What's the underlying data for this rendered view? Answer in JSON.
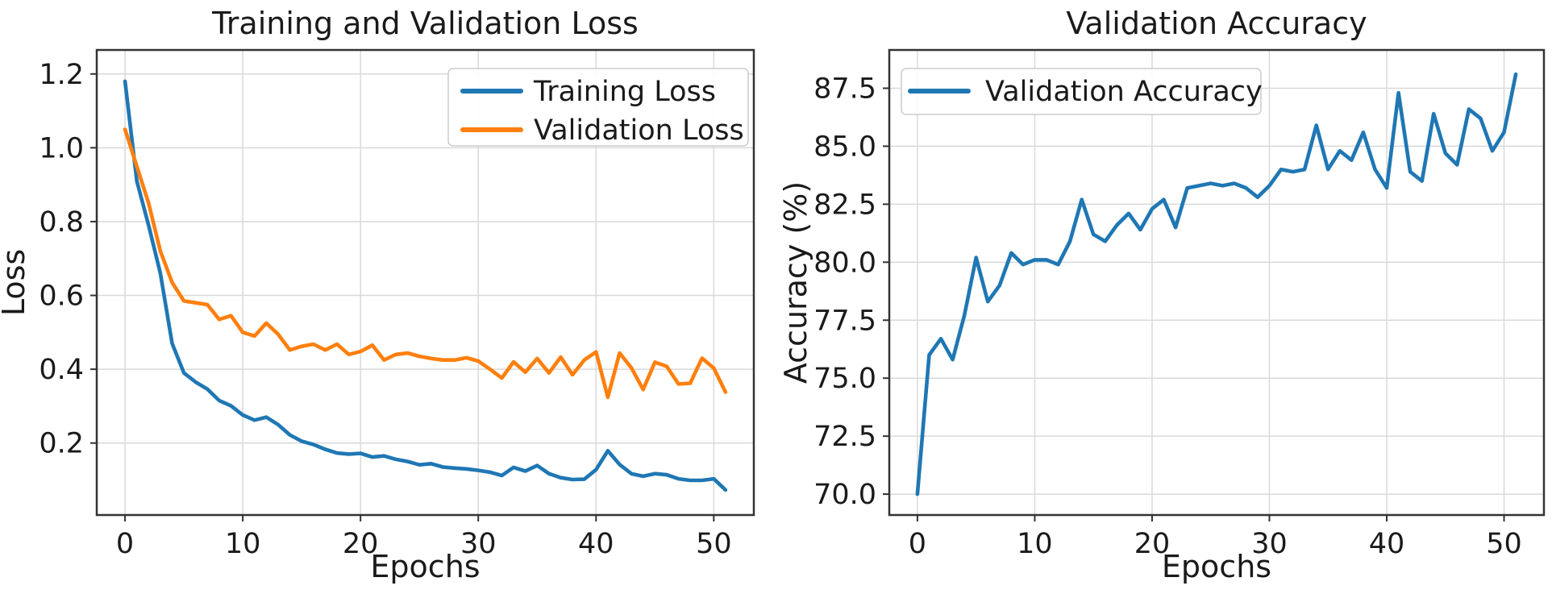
{
  "figure": {
    "background": "#ffffff",
    "text_color": "#1a1a1a",
    "grid_color": "#d9d9d9",
    "spine_color": "#333333",
    "legend_border_color": "#cccccc",
    "legend_background": "#ffffff"
  },
  "chart_data": [
    {
      "name": "loss-chart",
      "type": "line",
      "title": "Training and Validation Loss",
      "xlabel": "Epochs",
      "ylabel": "Loss",
      "xlim": [
        -2.4,
        53.4
      ],
      "ylim": [
        0.005,
        1.265
      ],
      "grid": true,
      "legend_position": "upper right",
      "xticks": {
        "values": [
          0,
          10,
          20,
          30,
          40,
          50
        ],
        "labels": [
          "0",
          "10",
          "20",
          "30",
          "40",
          "50"
        ]
      },
      "yticks": {
        "values": [
          0.2,
          0.4,
          0.6,
          0.8,
          1.0,
          1.2
        ],
        "labels": [
          "0.2",
          "0.4",
          "0.6",
          "0.8",
          "1.0",
          "1.2"
        ]
      },
      "x": [
        0,
        1,
        2,
        3,
        4,
        5,
        6,
        7,
        8,
        9,
        10,
        11,
        12,
        13,
        14,
        15,
        16,
        17,
        18,
        19,
        20,
        21,
        22,
        23,
        24,
        25,
        26,
        27,
        28,
        29,
        30,
        31,
        32,
        33,
        34,
        35,
        36,
        37,
        38,
        39,
        40,
        41,
        42,
        43,
        44,
        45,
        46,
        47,
        48,
        49,
        50,
        51
      ],
      "series": [
        {
          "name": "Training Loss",
          "color": "#1f77b4",
          "values": [
            1.18,
            0.91,
            0.79,
            0.66,
            0.47,
            0.39,
            0.365,
            0.346,
            0.315,
            0.301,
            0.276,
            0.262,
            0.27,
            0.25,
            0.222,
            0.205,
            0.196,
            0.183,
            0.173,
            0.17,
            0.172,
            0.162,
            0.165,
            0.156,
            0.15,
            0.141,
            0.144,
            0.135,
            0.132,
            0.13,
            0.126,
            0.121,
            0.112,
            0.134,
            0.124,
            0.139,
            0.117,
            0.106,
            0.101,
            0.102,
            0.128,
            0.179,
            0.142,
            0.117,
            0.11,
            0.117,
            0.114,
            0.103,
            0.099,
            0.099,
            0.103,
            0.073
          ]
        },
        {
          "name": "Validation Loss",
          "color": "#ff7f0e",
          "values": [
            1.05,
            0.95,
            0.85,
            0.72,
            0.635,
            0.585,
            0.58,
            0.575,
            0.535,
            0.545,
            0.5,
            0.49,
            0.525,
            0.495,
            0.452,
            0.462,
            0.468,
            0.452,
            0.468,
            0.44,
            0.448,
            0.465,
            0.425,
            0.44,
            0.444,
            0.435,
            0.429,
            0.425,
            0.425,
            0.431,
            0.422,
            0.4,
            0.376,
            0.42,
            0.392,
            0.429,
            0.39,
            0.433,
            0.385,
            0.425,
            0.447,
            0.324,
            0.444,
            0.404,
            0.345,
            0.419,
            0.408,
            0.36,
            0.362,
            0.43,
            0.403,
            0.338
          ]
        }
      ]
    },
    {
      "name": "accuracy-chart",
      "type": "line",
      "title": "Validation Accuracy",
      "xlabel": "Epochs",
      "ylabel": "Accuracy (%)",
      "xlim": [
        -2.4,
        53.4
      ],
      "ylim": [
        69.1,
        89.15
      ],
      "grid": true,
      "legend_position": "upper left",
      "xticks": {
        "values": [
          0,
          10,
          20,
          30,
          40,
          50
        ],
        "labels": [
          "0",
          "10",
          "20",
          "30",
          "40",
          "50"
        ]
      },
      "yticks": {
        "values": [
          70.0,
          72.5,
          75.0,
          77.5,
          80.0,
          82.5,
          85.0,
          87.5
        ],
        "labels": [
          "70.0",
          "72.5",
          "75.0",
          "77.5",
          "80.0",
          "82.5",
          "85.0",
          "87.5"
        ]
      },
      "x": [
        0,
        1,
        2,
        3,
        4,
        5,
        6,
        7,
        8,
        9,
        10,
        11,
        12,
        13,
        14,
        15,
        16,
        17,
        18,
        19,
        20,
        21,
        22,
        23,
        24,
        25,
        26,
        27,
        28,
        29,
        30,
        31,
        32,
        33,
        34,
        35,
        36,
        37,
        38,
        39,
        40,
        41,
        42,
        43,
        44,
        45,
        46,
        47,
        48,
        49,
        50,
        51
      ],
      "series": [
        {
          "name": "Validation Accuracy",
          "color": "#1f77b4",
          "values": [
            70.0,
            76.0,
            76.7,
            75.8,
            77.7,
            80.2,
            78.3,
            79.0,
            80.4,
            79.9,
            80.1,
            80.1,
            79.9,
            80.9,
            82.7,
            81.2,
            80.9,
            81.6,
            82.1,
            81.4,
            82.3,
            82.7,
            81.5,
            83.2,
            83.3,
            83.4,
            83.3,
            83.4,
            83.2,
            82.8,
            83.3,
            84.0,
            83.9,
            84.0,
            85.9,
            84.0,
            84.8,
            84.4,
            85.6,
            84.0,
            83.2,
            87.3,
            83.9,
            83.5,
            86.4,
            84.7,
            84.2,
            86.6,
            86.2,
            84.8,
            85.6,
            88.1
          ]
        }
      ]
    }
  ]
}
